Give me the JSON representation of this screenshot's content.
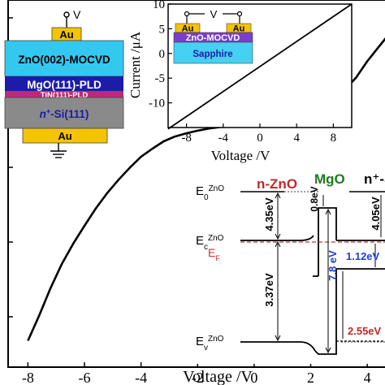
{
  "main_chart": {
    "xlabel": "Voltage /V",
    "x_ticks": [
      "-8",
      "-6",
      "-4",
      "-2",
      "0",
      "2",
      "4"
    ],
    "x_tick_values": [
      -8,
      -6,
      -4,
      -2,
      0,
      2,
      4
    ]
  },
  "device_stack": {
    "top_contact": "Au",
    "top_terminal": "V",
    "zno": "ZnO(002)-MOCVD",
    "mgo": "MgO(111)-PLD",
    "tin": "TiN(111)-PLD",
    "si_prefix": "n",
    "si_sup": "+",
    "si_suffix": "-Si(111)",
    "bottom_contact": "Au",
    "colors": {
      "au": "#f5c400",
      "zno": "#33c8f0",
      "mgo": "#1c1ca8",
      "tin": "#c0287a",
      "si": "#8a8a8a"
    }
  },
  "inset": {
    "ylabel": "Current /μA",
    "xlabel": "Voltage /V",
    "y_ticks": [
      "10",
      "5",
      "0",
      "-5",
      "-10"
    ],
    "x_ticks": [
      "-8",
      "-4",
      "0",
      "4",
      "8"
    ],
    "device": {
      "terminal": "V",
      "left_contact": "Au",
      "right_contact": "Au",
      "film": "ZnO-MOCVD",
      "substrate": "Sapphire"
    }
  },
  "band_diagram": {
    "region_nzno": "n-ZnO",
    "region_mgo": "MgO",
    "region_si": "n⁺-S",
    "e0_base": "E",
    "e0_sub": "0",
    "e0_sup": "ZnO",
    "ec_base": "E",
    "ec_sub": "c",
    "ec_sup": "ZnO",
    "ef_base": "E",
    "ef_sub": "F",
    "ev_base": "E",
    "ev_sub": "v",
    "ev_sup": "ZnO",
    "values": {
      "chi_zno": "4.35eV",
      "eg_zno": "3.37eV",
      "cbo": "0.8eV",
      "eg_mgo": "7.8 eV",
      "chi_si": "4.05eV",
      "eg_si": "1.12eV",
      "vbo": "2.55eV"
    },
    "colors": {
      "nzno": "#c0282a",
      "mgo": "#207a20",
      "eg_mgo": "#1f3fd8",
      "ef": "#d83030",
      "vbo": "#c0282a",
      "eg_si": "#1f3fd8"
    }
  },
  "chart_data": [
    {
      "type": "line",
      "title": "",
      "xlabel": "Voltage /V",
      "ylabel": "",
      "xlim": [
        -8.7,
        4.8
      ],
      "x_ticks": [
        -8,
        -6,
        -4,
        -2,
        0,
        2,
        4
      ],
      "series": [
        {
          "x": [
            -8.0,
            -7.6,
            -7.2,
            -6.8,
            -6.4,
            -6.0,
            -5.6,
            -5.2,
            -4.8,
            -4.4,
            -4.0,
            -3.6,
            -3.2,
            -2.8,
            -2.4,
            -2.0,
            -1.6,
            -1.2,
            -0.8,
            -0.4,
            0.0,
            0.4,
            0.8,
            1.2,
            1.6,
            2.0,
            2.4,
            2.8,
            3.2,
            3.6,
            4.0,
            4.4,
            4.8
          ],
          "y": [
            0.072,
            0.141,
            0.215,
            0.281,
            0.336,
            0.385,
            0.432,
            0.474,
            0.51,
            0.543,
            0.573,
            0.595,
            0.615,
            0.628,
            0.637,
            0.644,
            0.65,
            0.654,
            0.657,
            0.661,
            0.663,
            0.668,
            0.674,
            0.682,
            0.692,
            0.703,
            0.718,
            0.734,
            0.756,
            0.788,
            0.833,
            0.872,
            0.91
          ]
        }
      ]
    },
    {
      "type": "line",
      "title": "",
      "xlabel": "Voltage /V",
      "ylabel": "Current /μA",
      "xlim": [
        -10,
        10
      ],
      "ylim": [
        -15,
        10
      ],
      "x_ticks": [
        -8,
        -4,
        0,
        4,
        8
      ],
      "y_ticks": [
        10,
        5,
        0,
        -5,
        -10
      ],
      "series": [
        {
          "x": [
            -10,
            10
          ],
          "y": [
            -15.3,
            10.0
          ]
        }
      ]
    }
  ]
}
